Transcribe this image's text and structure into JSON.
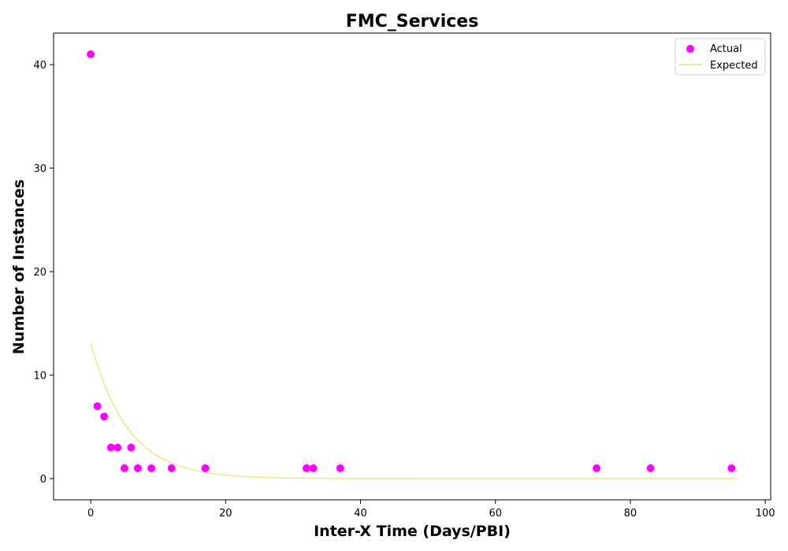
{
  "chart_data": {
    "type": "scatter",
    "title": "FMC_Services",
    "xlabel": "Inter-X Time (Days/PBI)",
    "ylabel": "Number of Instances",
    "xlim": [
      -5.5,
      100.8
    ],
    "ylim": [
      -2.05,
      43.05
    ],
    "xticks": [
      0,
      20,
      40,
      60,
      80,
      100
    ],
    "yticks": [
      0,
      10,
      20,
      30,
      40
    ],
    "grid": false,
    "legend_position": "top-right",
    "series": [
      {
        "name": "Actual",
        "kind": "scatter",
        "color": "#ff00ff",
        "x": [
          0,
          1,
          2,
          3,
          4,
          5,
          6,
          7,
          9,
          12,
          17,
          32,
          33,
          37,
          75,
          83,
          95
        ],
        "y": [
          41,
          7,
          6,
          3,
          3,
          1,
          3,
          1,
          1,
          1,
          1,
          1,
          1,
          1,
          1,
          1,
          1
        ]
      },
      {
        "name": "Expected",
        "kind": "line",
        "color": "#f0e68c",
        "x": [
          0,
          1,
          2,
          3,
          4,
          5,
          6,
          7,
          8,
          9,
          10,
          12,
          14,
          16,
          18,
          20,
          22,
          25,
          28,
          32,
          36,
          40,
          50,
          60,
          70,
          80,
          90,
          96
        ],
        "y": [
          13.1,
          10.93,
          9.12,
          7.61,
          6.35,
          5.3,
          4.42,
          3.69,
          3.08,
          2.57,
          2.14,
          1.49,
          1.04,
          0.72,
          0.5,
          0.35,
          0.24,
          0.14,
          0.08,
          0.04,
          0.02,
          0.01,
          0.0,
          0.0,
          0.0,
          0.0,
          0.0,
          0.0
        ]
      }
    ]
  }
}
